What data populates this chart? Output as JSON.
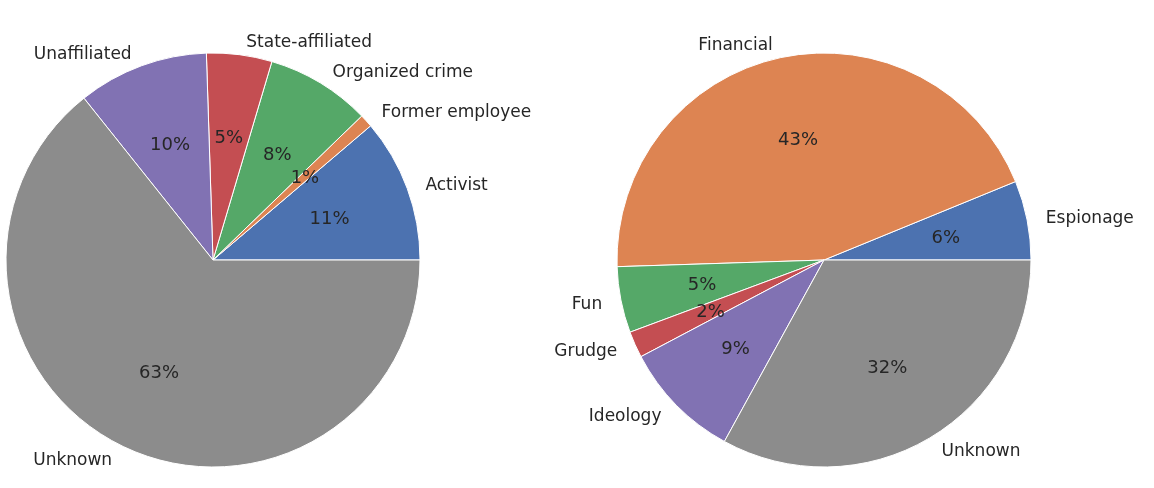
{
  "chart_data": [
    {
      "type": "pie",
      "categories": [
        "Activist",
        "Former employee",
        "Organized crime",
        "State-affiliated",
        "Unaffiliated",
        "Unknown"
      ],
      "values": [
        11,
        1,
        8,
        5,
        10,
        63
      ],
      "value_labels": [
        "11%",
        "1%",
        "8%",
        "5%",
        "10%",
        "63%"
      ],
      "colors": [
        "#4c72b0",
        "#dd8452",
        "#55a868",
        "#c44e52",
        "#8172b3",
        "#8c8c8c"
      ]
    },
    {
      "type": "pie",
      "categories": [
        "Espionage",
        "Financial",
        "Fun",
        "Grudge",
        "Ideology",
        "Unknown"
      ],
      "values": [
        6,
        43,
        5,
        2,
        9,
        32
      ],
      "value_labels": [
        "6%",
        "43%",
        "5%",
        "2%",
        "9%",
        "32%"
      ],
      "colors": [
        "#4c72b0",
        "#dd8452",
        "#55a868",
        "#c44e52",
        "#8172b3",
        "#8c8c8c"
      ]
    }
  ]
}
